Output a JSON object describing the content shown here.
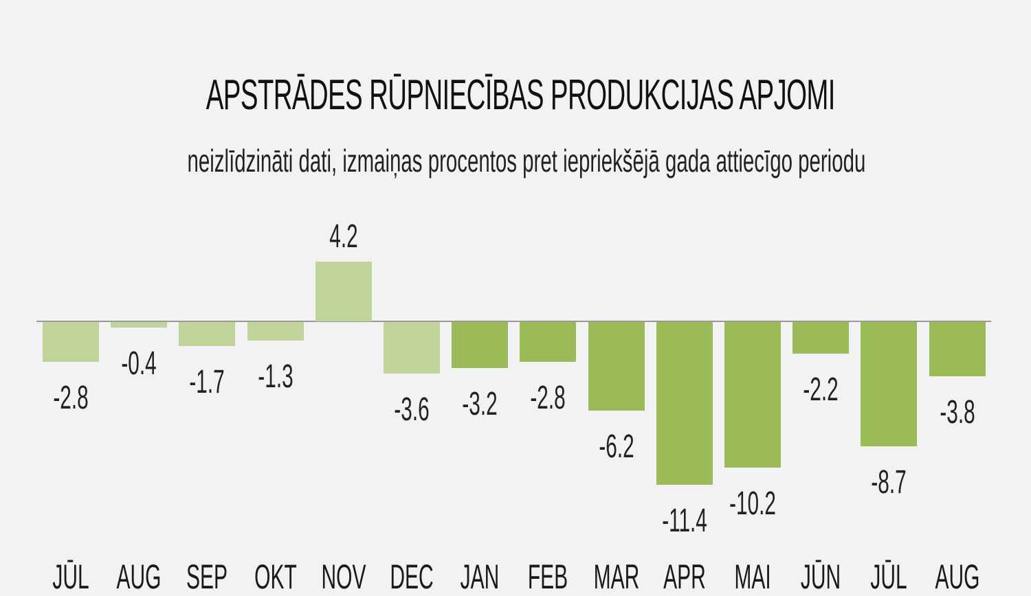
{
  "header": {
    "title": "APSTRĀDES RŪPNIECĪBAS PRODUKCIJAS APJOMI",
    "subtitle": "neizlīdzināti dati, izmaiņas procentos pret iepriekšējā gada attiecīgo periodu"
  },
  "colors": {
    "background": "#f2f2f2",
    "bar_previous_year": "#c0d39a",
    "bar_current_year": "#9bbb59",
    "baseline": "#999999"
  },
  "chart_data": {
    "type": "bar",
    "title": "APSTRĀDES RŪPNIECĪBAS PRODUKCIJAS APJOMI",
    "subtitle": "neizlīdzināti dati, izmaiņas procentos pret iepriekšējā gada attiecīgo periodu",
    "xlabel": "",
    "ylabel": "",
    "categories": [
      "JŪL",
      "AUG",
      "SEP",
      "OKT",
      "NOV",
      "DEC",
      "JAN",
      "FEB",
      "MAR",
      "APR",
      "MAI",
      "JŪN",
      "JŪL",
      "AUG"
    ],
    "values": [
      -2.8,
      -0.4,
      -1.7,
      -1.3,
      4.2,
      -3.6,
      -3.2,
      -2.8,
      -6.2,
      -11.4,
      -10.2,
      -2.2,
      -8.7,
      -3.8
    ],
    "value_labels": [
      "-2.8",
      "-0.4",
      "-1.7",
      "-1.3",
      "4.2",
      "-3.6",
      "-3.2",
      "-2.8",
      "-6.2",
      "-11.4",
      "-10.2",
      "-2.2",
      "-8.7",
      "-3.8"
    ],
    "bar_shade": [
      "light",
      "light",
      "light",
      "light",
      "light",
      "light",
      "dark",
      "dark",
      "dark",
      "dark",
      "dark",
      "dark",
      "dark",
      "dark"
    ],
    "grid": false,
    "legend": null,
    "y_axis_visible": false,
    "baseline_at": 0
  }
}
